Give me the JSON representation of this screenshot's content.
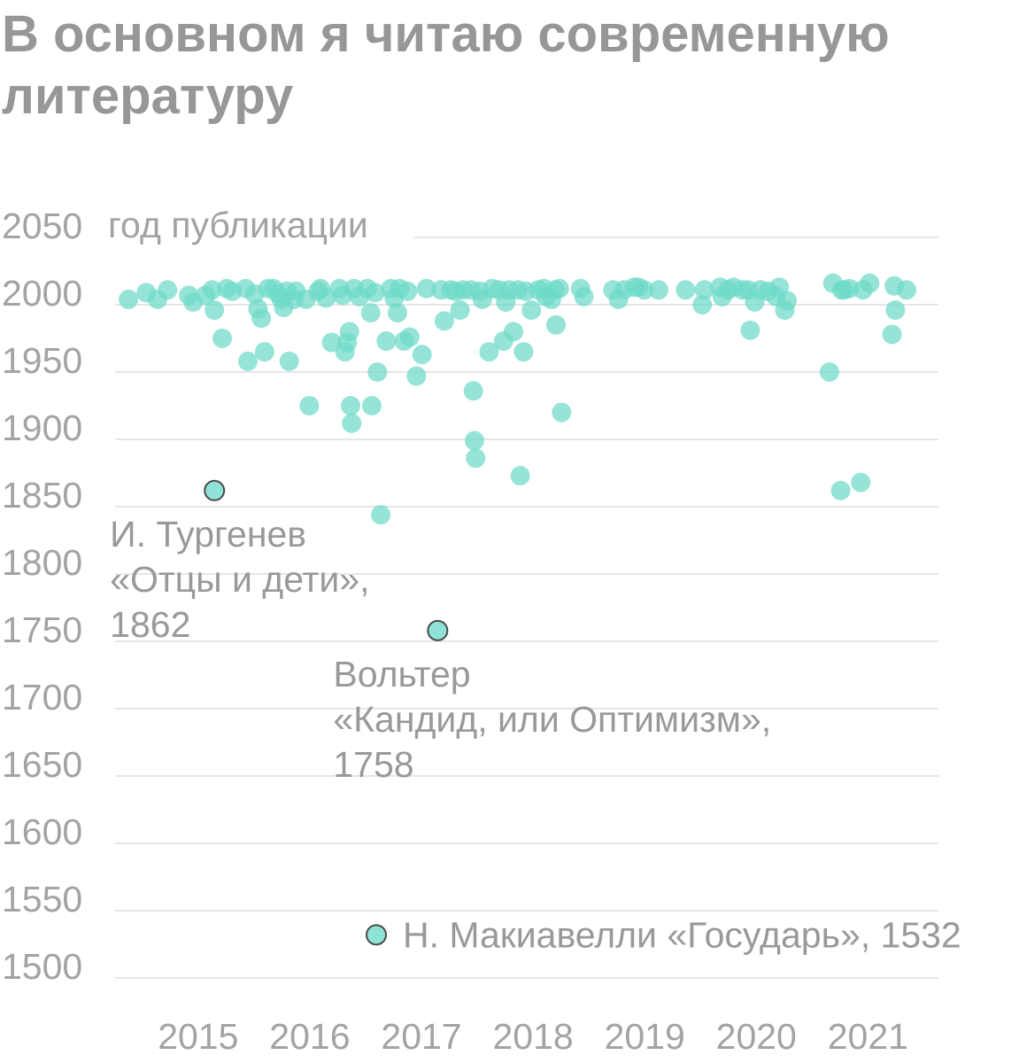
{
  "chart_data": {
    "type": "scatter",
    "title": "В основном я читаю современную литературу",
    "y_unit_label": "год публикации",
    "ylim": [
      1500,
      2050
    ],
    "y_ticks": [
      "2050",
      "2000",
      "1950",
      "1900",
      "1850",
      "1800",
      "1750",
      "1700",
      "1650",
      "1600",
      "1550",
      "1500"
    ],
    "xlim": [
      2014.7,
      2021.6
    ],
    "x_ticks": [
      "2015",
      "2016",
      "2017",
      "2018",
      "2019",
      "2020",
      "2021"
    ],
    "colors": {
      "point": "#6ed9c8",
      "highlight_fill": "#8ee3d6",
      "highlight_stroke": "#4a4a4a",
      "grid": "#dddddd",
      "text": "#a3a3a3",
      "title": "#979797"
    },
    "points": [
      [
        2014.78,
        2004
      ],
      [
        2014.94,
        2009
      ],
      [
        2015.04,
        2004
      ],
      [
        2015.13,
        2011
      ],
      [
        2015.32,
        2007
      ],
      [
        2015.36,
        2002
      ],
      [
        2015.47,
        2007
      ],
      [
        2015.53,
        2011
      ],
      [
        2015.55,
        1996
      ],
      [
        2015.62,
        1975
      ],
      [
        2015.66,
        2012
      ],
      [
        2015.71,
        2010
      ],
      [
        2015.83,
        2012
      ],
      [
        2015.85,
        1958
      ],
      [
        2015.91,
        2008
      ],
      [
        2015.94,
        1997
      ],
      [
        2015.97,
        1990
      ],
      [
        2016.0,
        1965
      ],
      [
        2016.03,
        2012
      ],
      [
        2016.08,
        2012
      ],
      [
        2016.12,
        2008
      ],
      [
        2016.15,
        2004
      ],
      [
        2016.17,
        1998
      ],
      [
        2016.2,
        2010
      ],
      [
        2016.22,
        1958
      ],
      [
        2016.26,
        2004
      ],
      [
        2016.28,
        2010
      ],
      [
        2016.37,
        2004
      ],
      [
        2016.4,
        1925
      ],
      [
        2016.48,
        2010
      ],
      [
        2016.5,
        2012
      ],
      [
        2016.55,
        2005
      ],
      [
        2016.6,
        1972
      ],
      [
        2016.67,
        2012
      ],
      [
        2016.7,
        2007
      ],
      [
        2016.72,
        1965
      ],
      [
        2016.74,
        1972
      ],
      [
        2016.76,
        1980
      ],
      [
        2016.77,
        1925
      ],
      [
        2016.78,
        1912
      ],
      [
        2016.8,
        2012
      ],
      [
        2016.85,
        2006
      ],
      [
        2016.92,
        2012
      ],
      [
        2016.95,
        1994
      ],
      [
        2016.96,
        1925
      ],
      [
        2016.99,
        2009
      ],
      [
        2017.01,
        1950
      ],
      [
        2017.04,
        1844
      ],
      [
        2017.09,
        1973
      ],
      [
        2017.13,
        2012
      ],
      [
        2017.16,
        2005
      ],
      [
        2017.19,
        1994
      ],
      [
        2017.21,
        2012
      ],
      [
        2017.25,
        1973
      ],
      [
        2017.28,
        2010
      ],
      [
        2017.3,
        1976
      ],
      [
        2017.36,
        1947
      ],
      [
        2017.41,
        1963
      ],
      [
        2017.45,
        2012
      ],
      [
        2017.58,
        2011
      ],
      [
        2017.61,
        1988
      ],
      [
        2017.67,
        2011
      ],
      [
        2017.71,
        2010
      ],
      [
        2017.75,
        1996
      ],
      [
        2017.78,
        2011
      ],
      [
        2017.85,
        2011
      ],
      [
        2017.87,
        1936
      ],
      [
        2017.88,
        1899
      ],
      [
        2017.89,
        1886
      ],
      [
        2017.93,
        2010
      ],
      [
        2017.95,
        2004
      ],
      [
        2018.01,
        1965
      ],
      [
        2018.04,
        2012
      ],
      [
        2018.1,
        2011
      ],
      [
        2018.14,
        1973
      ],
      [
        2018.16,
        2002
      ],
      [
        2018.19,
        2011
      ],
      [
        2018.23,
        1980
      ],
      [
        2018.27,
        2011
      ],
      [
        2018.29,
        1873
      ],
      [
        2018.32,
        1965
      ],
      [
        2018.34,
        2010
      ],
      [
        2018.39,
        1996
      ],
      [
        2018.45,
        2011
      ],
      [
        2018.5,
        2012
      ],
      [
        2018.52,
        2006
      ],
      [
        2018.57,
        2004
      ],
      [
        2018.6,
        2011
      ],
      [
        2018.61,
        1985
      ],
      [
        2018.64,
        2012
      ],
      [
        2018.66,
        1920
      ],
      [
        2018.83,
        2012
      ],
      [
        2018.86,
        2006
      ],
      [
        2019.12,
        2011
      ],
      [
        2019.17,
        2004
      ],
      [
        2019.22,
        2011
      ],
      [
        2019.31,
        2013
      ],
      [
        2019.35,
        2013
      ],
      [
        2019.4,
        2011
      ],
      [
        2019.53,
        2011
      ],
      [
        2019.77,
        2011
      ],
      [
        2019.92,
        2000
      ],
      [
        2019.94,
        2011
      ],
      [
        2020.08,
        2013
      ],
      [
        2020.1,
        2006
      ],
      [
        2020.15,
        2011
      ],
      [
        2020.2,
        2013
      ],
      [
        2020.28,
        2011
      ],
      [
        2020.33,
        2011
      ],
      [
        2020.35,
        1981
      ],
      [
        2020.39,
        2002
      ],
      [
        2020.44,
        2011
      ],
      [
        2020.51,
        2010
      ],
      [
        2020.58,
        2006
      ],
      [
        2020.61,
        2013
      ],
      [
        2020.66,
        1996
      ],
      [
        2020.68,
        2003
      ],
      [
        2021.06,
        1950
      ],
      [
        2021.09,
        2016
      ],
      [
        2021.16,
        1862
      ],
      [
        2021.17,
        2011
      ],
      [
        2021.19,
        2011
      ],
      [
        2021.24,
        2012
      ],
      [
        2021.34,
        1868
      ],
      [
        2021.36,
        2011
      ],
      [
        2021.42,
        2016
      ],
      [
        2021.62,
        1978
      ],
      [
        2021.64,
        2014
      ],
      [
        2021.65,
        1996
      ],
      [
        2021.75,
        2011
      ]
    ],
    "highlights": [
      {
        "x": 2015.55,
        "y": 1862,
        "label": [
          "И. Тургенев",
          "«Отцы и дети»,",
          "1862"
        ]
      },
      {
        "x": 2017.55,
        "y": 1758,
        "label": [
          "Вольтер",
          "«Кандид, или Оптимизм»,",
          "1758"
        ]
      },
      {
        "x": 2017.0,
        "y": 1532,
        "label": [
          "Н. Макиавелли «Государь», 1532"
        ]
      }
    ]
  }
}
